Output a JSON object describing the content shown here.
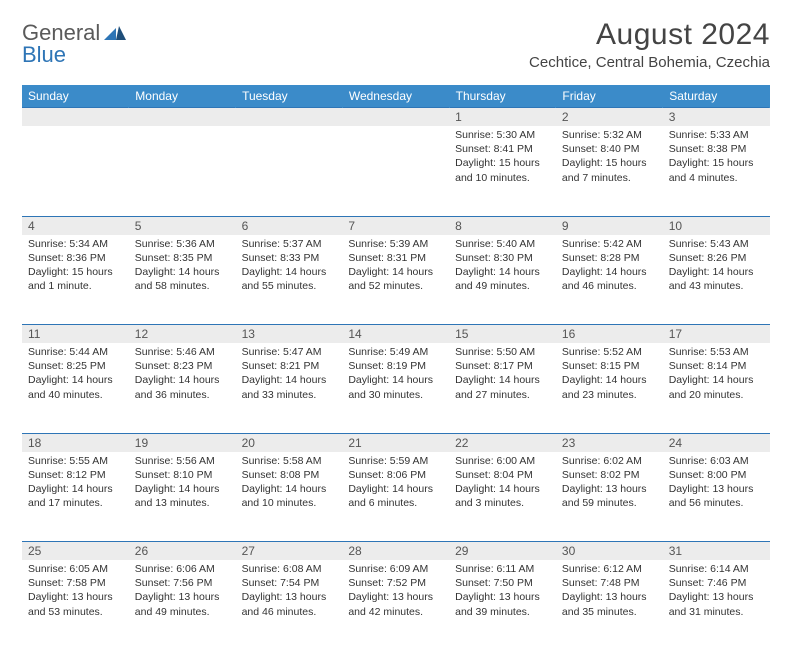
{
  "logo": {
    "text1": "General",
    "text2": "Blue"
  },
  "title": "August 2024",
  "location": "Cechtice, Central Bohemia, Czechia",
  "colors": {
    "header_bg": "#3b8bc9",
    "header_text": "#ffffff",
    "daynum_bg": "#ececec",
    "border": "#2e75b6",
    "body_text": "#333333"
  },
  "daysOfWeek": [
    "Sunday",
    "Monday",
    "Tuesday",
    "Wednesday",
    "Thursday",
    "Friday",
    "Saturday"
  ],
  "weeks": [
    [
      {
        "n": "",
        "sr": "",
        "ss": "",
        "dl1": "",
        "dl2": ""
      },
      {
        "n": "",
        "sr": "",
        "ss": "",
        "dl1": "",
        "dl2": ""
      },
      {
        "n": "",
        "sr": "",
        "ss": "",
        "dl1": "",
        "dl2": ""
      },
      {
        "n": "",
        "sr": "",
        "ss": "",
        "dl1": "",
        "dl2": ""
      },
      {
        "n": "1",
        "sr": "Sunrise: 5:30 AM",
        "ss": "Sunset: 8:41 PM",
        "dl1": "Daylight: 15 hours",
        "dl2": "and 10 minutes."
      },
      {
        "n": "2",
        "sr": "Sunrise: 5:32 AM",
        "ss": "Sunset: 8:40 PM",
        "dl1": "Daylight: 15 hours",
        "dl2": "and 7 minutes."
      },
      {
        "n": "3",
        "sr": "Sunrise: 5:33 AM",
        "ss": "Sunset: 8:38 PM",
        "dl1": "Daylight: 15 hours",
        "dl2": "and 4 minutes."
      }
    ],
    [
      {
        "n": "4",
        "sr": "Sunrise: 5:34 AM",
        "ss": "Sunset: 8:36 PM",
        "dl1": "Daylight: 15 hours",
        "dl2": "and 1 minute."
      },
      {
        "n": "5",
        "sr": "Sunrise: 5:36 AM",
        "ss": "Sunset: 8:35 PM",
        "dl1": "Daylight: 14 hours",
        "dl2": "and 58 minutes."
      },
      {
        "n": "6",
        "sr": "Sunrise: 5:37 AM",
        "ss": "Sunset: 8:33 PM",
        "dl1": "Daylight: 14 hours",
        "dl2": "and 55 minutes."
      },
      {
        "n": "7",
        "sr": "Sunrise: 5:39 AM",
        "ss": "Sunset: 8:31 PM",
        "dl1": "Daylight: 14 hours",
        "dl2": "and 52 minutes."
      },
      {
        "n": "8",
        "sr": "Sunrise: 5:40 AM",
        "ss": "Sunset: 8:30 PM",
        "dl1": "Daylight: 14 hours",
        "dl2": "and 49 minutes."
      },
      {
        "n": "9",
        "sr": "Sunrise: 5:42 AM",
        "ss": "Sunset: 8:28 PM",
        "dl1": "Daylight: 14 hours",
        "dl2": "and 46 minutes."
      },
      {
        "n": "10",
        "sr": "Sunrise: 5:43 AM",
        "ss": "Sunset: 8:26 PM",
        "dl1": "Daylight: 14 hours",
        "dl2": "and 43 minutes."
      }
    ],
    [
      {
        "n": "11",
        "sr": "Sunrise: 5:44 AM",
        "ss": "Sunset: 8:25 PM",
        "dl1": "Daylight: 14 hours",
        "dl2": "and 40 minutes."
      },
      {
        "n": "12",
        "sr": "Sunrise: 5:46 AM",
        "ss": "Sunset: 8:23 PM",
        "dl1": "Daylight: 14 hours",
        "dl2": "and 36 minutes."
      },
      {
        "n": "13",
        "sr": "Sunrise: 5:47 AM",
        "ss": "Sunset: 8:21 PM",
        "dl1": "Daylight: 14 hours",
        "dl2": "and 33 minutes."
      },
      {
        "n": "14",
        "sr": "Sunrise: 5:49 AM",
        "ss": "Sunset: 8:19 PM",
        "dl1": "Daylight: 14 hours",
        "dl2": "and 30 minutes."
      },
      {
        "n": "15",
        "sr": "Sunrise: 5:50 AM",
        "ss": "Sunset: 8:17 PM",
        "dl1": "Daylight: 14 hours",
        "dl2": "and 27 minutes."
      },
      {
        "n": "16",
        "sr": "Sunrise: 5:52 AM",
        "ss": "Sunset: 8:15 PM",
        "dl1": "Daylight: 14 hours",
        "dl2": "and 23 minutes."
      },
      {
        "n": "17",
        "sr": "Sunrise: 5:53 AM",
        "ss": "Sunset: 8:14 PM",
        "dl1": "Daylight: 14 hours",
        "dl2": "and 20 minutes."
      }
    ],
    [
      {
        "n": "18",
        "sr": "Sunrise: 5:55 AM",
        "ss": "Sunset: 8:12 PM",
        "dl1": "Daylight: 14 hours",
        "dl2": "and 17 minutes."
      },
      {
        "n": "19",
        "sr": "Sunrise: 5:56 AM",
        "ss": "Sunset: 8:10 PM",
        "dl1": "Daylight: 14 hours",
        "dl2": "and 13 minutes."
      },
      {
        "n": "20",
        "sr": "Sunrise: 5:58 AM",
        "ss": "Sunset: 8:08 PM",
        "dl1": "Daylight: 14 hours",
        "dl2": "and 10 minutes."
      },
      {
        "n": "21",
        "sr": "Sunrise: 5:59 AM",
        "ss": "Sunset: 8:06 PM",
        "dl1": "Daylight: 14 hours",
        "dl2": "and 6 minutes."
      },
      {
        "n": "22",
        "sr": "Sunrise: 6:00 AM",
        "ss": "Sunset: 8:04 PM",
        "dl1": "Daylight: 14 hours",
        "dl2": "and 3 minutes."
      },
      {
        "n": "23",
        "sr": "Sunrise: 6:02 AM",
        "ss": "Sunset: 8:02 PM",
        "dl1": "Daylight: 13 hours",
        "dl2": "and 59 minutes."
      },
      {
        "n": "24",
        "sr": "Sunrise: 6:03 AM",
        "ss": "Sunset: 8:00 PM",
        "dl1": "Daylight: 13 hours",
        "dl2": "and 56 minutes."
      }
    ],
    [
      {
        "n": "25",
        "sr": "Sunrise: 6:05 AM",
        "ss": "Sunset: 7:58 PM",
        "dl1": "Daylight: 13 hours",
        "dl2": "and 53 minutes."
      },
      {
        "n": "26",
        "sr": "Sunrise: 6:06 AM",
        "ss": "Sunset: 7:56 PM",
        "dl1": "Daylight: 13 hours",
        "dl2": "and 49 minutes."
      },
      {
        "n": "27",
        "sr": "Sunrise: 6:08 AM",
        "ss": "Sunset: 7:54 PM",
        "dl1": "Daylight: 13 hours",
        "dl2": "and 46 minutes."
      },
      {
        "n": "28",
        "sr": "Sunrise: 6:09 AM",
        "ss": "Sunset: 7:52 PM",
        "dl1": "Daylight: 13 hours",
        "dl2": "and 42 minutes."
      },
      {
        "n": "29",
        "sr": "Sunrise: 6:11 AM",
        "ss": "Sunset: 7:50 PM",
        "dl1": "Daylight: 13 hours",
        "dl2": "and 39 minutes."
      },
      {
        "n": "30",
        "sr": "Sunrise: 6:12 AM",
        "ss": "Sunset: 7:48 PM",
        "dl1": "Daylight: 13 hours",
        "dl2": "and 35 minutes."
      },
      {
        "n": "31",
        "sr": "Sunrise: 6:14 AM",
        "ss": "Sunset: 7:46 PM",
        "dl1": "Daylight: 13 hours",
        "dl2": "and 31 minutes."
      }
    ]
  ]
}
